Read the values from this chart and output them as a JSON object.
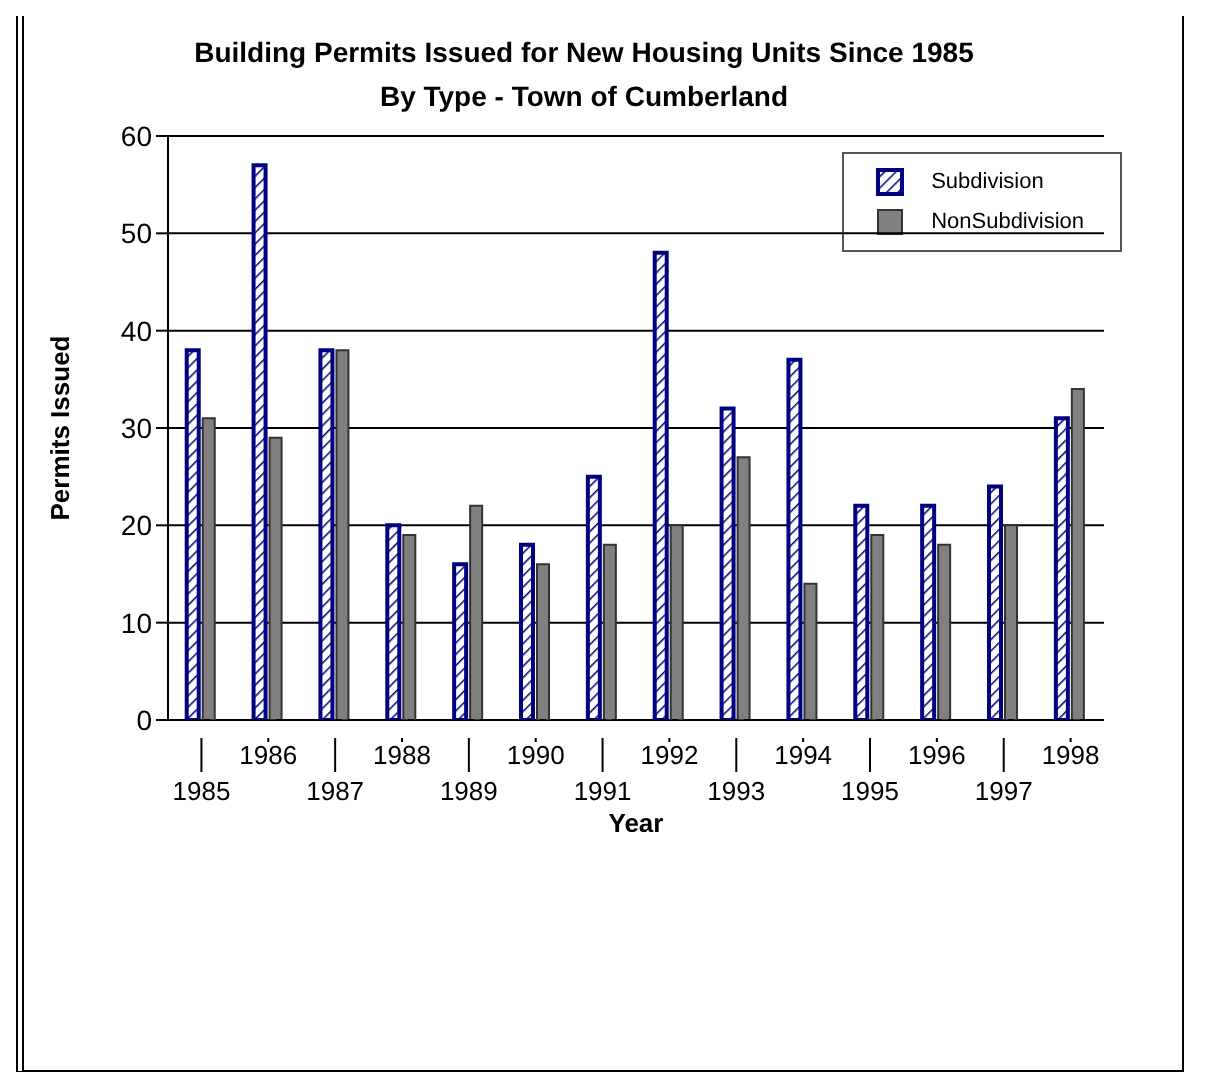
{
  "chart_data": {
    "type": "bar",
    "title": "Building Permits Issued for New Housing Units Since 1985",
    "subtitle": "By Type - Town of Cumberland",
    "xlabel": "Year",
    "ylabel": "Permits Issued",
    "categories": [
      "1985",
      "1986",
      "1987",
      "1988",
      "1989",
      "1990",
      "1991",
      "1992",
      "1993",
      "1994",
      "1995",
      "1996",
      "1997",
      "1998"
    ],
    "series": [
      {
        "name": "Subdivision",
        "color": "#000080",
        "values": [
          38,
          57,
          38,
          20,
          16,
          18,
          25,
          48,
          32,
          37,
          22,
          22,
          24,
          31
        ]
      },
      {
        "name": "NonSubdivision",
        "color": "#808080",
        "values": [
          31,
          29,
          38,
          19,
          22,
          16,
          18,
          20,
          27,
          14,
          19,
          18,
          20,
          34
        ]
      }
    ],
    "ylim": [
      0,
      60
    ],
    "yticks": [
      0,
      10,
      20,
      30,
      40,
      50,
      60
    ],
    "grid": "y",
    "legend": "top right"
  }
}
